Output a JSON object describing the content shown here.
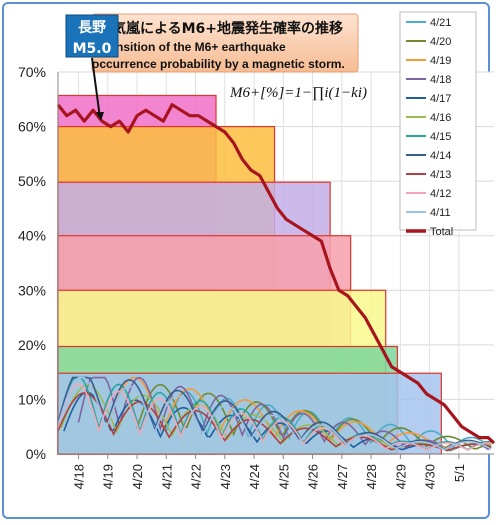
{
  "chart_data": {
    "type": "line",
    "title_jp": "磁気嵐によるM6+地震発生確率の推移",
    "title_en_1": "Transition of the M6+ earthquake",
    "title_en_2": "occurrence probability by a magnetic storm.",
    "formula": "M6+[%]=1−∏i(1−ki)",
    "location_label": "長野",
    "magnitude_label": "M5.0",
    "ylim": [
      0,
      70
    ],
    "y_ticks": [
      "0%",
      "10%",
      "20%",
      "30%",
      "40%",
      "50%",
      "60%",
      "70%"
    ],
    "xlim": [
      17.3,
      32.2
    ],
    "x_ticks": [
      {
        "pos": 18,
        "label": "4/18"
      },
      {
        "pos": 19,
        "label": "4/19"
      },
      {
        "pos": 20,
        "label": "4/20"
      },
      {
        "pos": 21,
        "label": "4/21"
      },
      {
        "pos": 22,
        "label": "4/22"
      },
      {
        "pos": 23,
        "label": "4/23"
      },
      {
        "pos": 24,
        "label": "4/24"
      },
      {
        "pos": 25,
        "label": "4/25"
      },
      {
        "pos": 26,
        "label": "4/26"
      },
      {
        "pos": 27,
        "label": "4/27"
      },
      {
        "pos": 28,
        "label": "4/28"
      },
      {
        "pos": 29,
        "label": "4/29"
      },
      {
        "pos": 30,
        "label": "4/30"
      },
      {
        "pos": 31,
        "label": "5/1"
      }
    ],
    "bands": [
      {
        "top": 65.7,
        "x_end": 22.7,
        "color": "#f06ec8"
      },
      {
        "top": 60,
        "x_end": 24.7,
        "color": "#fbbe3e"
      },
      {
        "top": 49.8,
        "x_end": 26.6,
        "color": "#c3aee6"
      },
      {
        "top": 40,
        "x_end": 27.3,
        "color": "#f7a0ac"
      },
      {
        "top": 30,
        "x_end": 28.5,
        "color": "#f8f88c"
      },
      {
        "top": 19.7,
        "x_end": 28.9,
        "color": "#7cd79e"
      },
      {
        "top": 14.8,
        "x_end": 30.4,
        "color": "#a4c4ec"
      }
    ],
    "series": [
      {
        "name": "4/21",
        "color": "#4bacc6",
        "start": 21.0
      },
      {
        "name": "4/20",
        "color": "#6e8b2e",
        "start": 20.0
      },
      {
        "name": "4/19",
        "color": "#f59a3a",
        "start": 19.0
      },
      {
        "name": "4/18",
        "color": "#8064a2",
        "start": 18.0
      },
      {
        "name": "4/17",
        "color": "#1f5fa0",
        "start": 17.5
      },
      {
        "name": "4/16",
        "color": "#9bbb59",
        "start": 17.4
      },
      {
        "name": "4/15",
        "color": "#2aa6a0",
        "start": 17.3
      },
      {
        "name": "4/14",
        "color": "#3a5d8f",
        "start": 17.3
      },
      {
        "name": "4/13",
        "color": "#b04040",
        "start": 17.3
      },
      {
        "name": "4/12",
        "color": "#f0a8b8",
        "start": 17.3
      },
      {
        "name": "4/11",
        "color": "#9ec3e6",
        "start": 17.3
      }
    ],
    "total": {
      "name": "Total",
      "color": "#a8141e",
      "x": [
        17.3,
        17.6,
        17.9,
        18.2,
        18.5,
        18.8,
        19.1,
        19.4,
        19.7,
        20.0,
        20.3,
        20.6,
        20.9,
        21.2,
        21.5,
        21.8,
        22.1,
        22.4,
        22.7,
        23.0,
        23.3,
        23.6,
        23.9,
        24.2,
        24.5,
        24.8,
        25.1,
        25.4,
        25.7,
        26.0,
        26.3,
        26.6,
        26.9,
        27.2,
        27.5,
        27.8,
        28.1,
        28.4,
        28.7,
        29.0,
        29.3,
        29.6,
        29.9,
        30.2,
        30.5,
        30.8,
        31.1,
        31.4,
        31.7,
        32.0,
        32.2
      ],
      "y": [
        64,
        62,
        63,
        61,
        63,
        61,
        60,
        61,
        59,
        62,
        63,
        62,
        61,
        64,
        63,
        62,
        62,
        61,
        60,
        59,
        57,
        54,
        52,
        51,
        48,
        45,
        43,
        42,
        41,
        40,
        39,
        34,
        30,
        29,
        27,
        25,
        22,
        19,
        16,
        15,
        14,
        13,
        11,
        10,
        9,
        7,
        5,
        4,
        3,
        3,
        2
      ]
    }
  }
}
